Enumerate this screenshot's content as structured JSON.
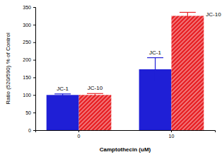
{
  "chart_data": {
    "type": "bar",
    "x_label": "Camptothecin (uM)",
    "y_label": "Ratio (520/590) % of Control",
    "categories": [
      "0",
      "10"
    ],
    "series": [
      {
        "name": "JC-1",
        "color": "#1f1fd6",
        "values": [
          100,
          173
        ],
        "errors": [
          3,
          33
        ]
      },
      {
        "name": "JC-10",
        "color": "#e8262a",
        "values": [
          100,
          325
        ],
        "errors": [
          4,
          10
        ]
      }
    ],
    "ylim": [
      0,
      350
    ],
    "yticks": [
      0,
      50,
      100,
      150,
      200,
      250,
      300,
      350
    ],
    "grid": false,
    "data_labels": false
  }
}
